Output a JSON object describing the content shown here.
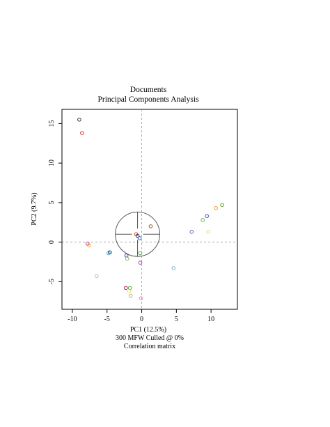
{
  "chart_data": {
    "type": "scatter",
    "title": "Documents",
    "subtitle": "Principal Components Analysis",
    "xlabel": "PC1 (12.5%)",
    "ylabel": "PC2 (9.7%)",
    "caption_lines": [
      "300 MFW  Culled @ 0%",
      "Correlation matrix"
    ],
    "xlim": [
      -11.5,
      13.8
    ],
    "ylim": [
      -8.5,
      16.8
    ],
    "x_ticks": [
      -10,
      -5,
      0,
      5,
      10
    ],
    "x_tick_labels": [
      "-10",
      "-5",
      "0",
      "5",
      "10"
    ],
    "y_ticks": [
      -5,
      0,
      5,
      10,
      15
    ],
    "y_tick_labels": [
      "-5",
      "0",
      "5",
      "10",
      "15"
    ],
    "grid": false,
    "zero_lines": true,
    "legend": "none",
    "center_circle": {
      "cx": -0.6,
      "cy": 1.0,
      "r": 3.2
    },
    "points": [
      {
        "x": -9.0,
        "y": 15.5,
        "color": "#333333"
      },
      {
        "x": -8.6,
        "y": 13.8,
        "color": "#e8332a"
      },
      {
        "x": -7.8,
        "y": -0.2,
        "color": "#b03a7a"
      },
      {
        "x": -7.6,
        "y": -0.4,
        "color": "#f5a623"
      },
      {
        "x": -6.5,
        "y": -4.3,
        "color": "#bbbbbb"
      },
      {
        "x": -4.8,
        "y": -1.4,
        "color": "#2ec4c4"
      },
      {
        "x": -4.6,
        "y": -1.3,
        "color": "#1a1a8c"
      },
      {
        "x": -2.2,
        "y": -1.7,
        "color": "#2233bb"
      },
      {
        "x": -2.1,
        "y": -2.1,
        "color": "#8bc34a"
      },
      {
        "x": -2.3,
        "y": -5.8,
        "color": "#aa2255"
      },
      {
        "x": -1.7,
        "y": -5.8,
        "color": "#4caf50"
      },
      {
        "x": -1.8,
        "y": -6.2,
        "color": "#f0e060"
      },
      {
        "x": -1.6,
        "y": -6.8,
        "color": "#aaaaaa"
      },
      {
        "x": -0.8,
        "y": 1.0,
        "color": "#e53935"
      },
      {
        "x": -0.6,
        "y": 0.8,
        "color": "#222222"
      },
      {
        "x": -0.3,
        "y": 0.5,
        "color": "#3b4cc0"
      },
      {
        "x": -0.2,
        "y": -1.4,
        "color": "#4caf50"
      },
      {
        "x": -0.2,
        "y": -2.6,
        "color": "#8e44ad"
      },
      {
        "x": -0.1,
        "y": -7.1,
        "color": "#e091b0"
      },
      {
        "x": 1.3,
        "y": 2.0,
        "color": "#8b6b22"
      },
      {
        "x": 4.6,
        "y": -3.3,
        "color": "#6fb7d6"
      },
      {
        "x": 7.2,
        "y": 1.3,
        "color": "#7e57c2"
      },
      {
        "x": 8.8,
        "y": 2.8,
        "color": "#5cb85c"
      },
      {
        "x": 9.4,
        "y": 3.3,
        "color": "#3f51b5"
      },
      {
        "x": 9.6,
        "y": 1.3,
        "color": "#f5d58a"
      },
      {
        "x": 10.7,
        "y": 4.3,
        "color": "#f39c12"
      },
      {
        "x": 11.6,
        "y": 4.7,
        "color": "#6a9c2c"
      }
    ]
  }
}
